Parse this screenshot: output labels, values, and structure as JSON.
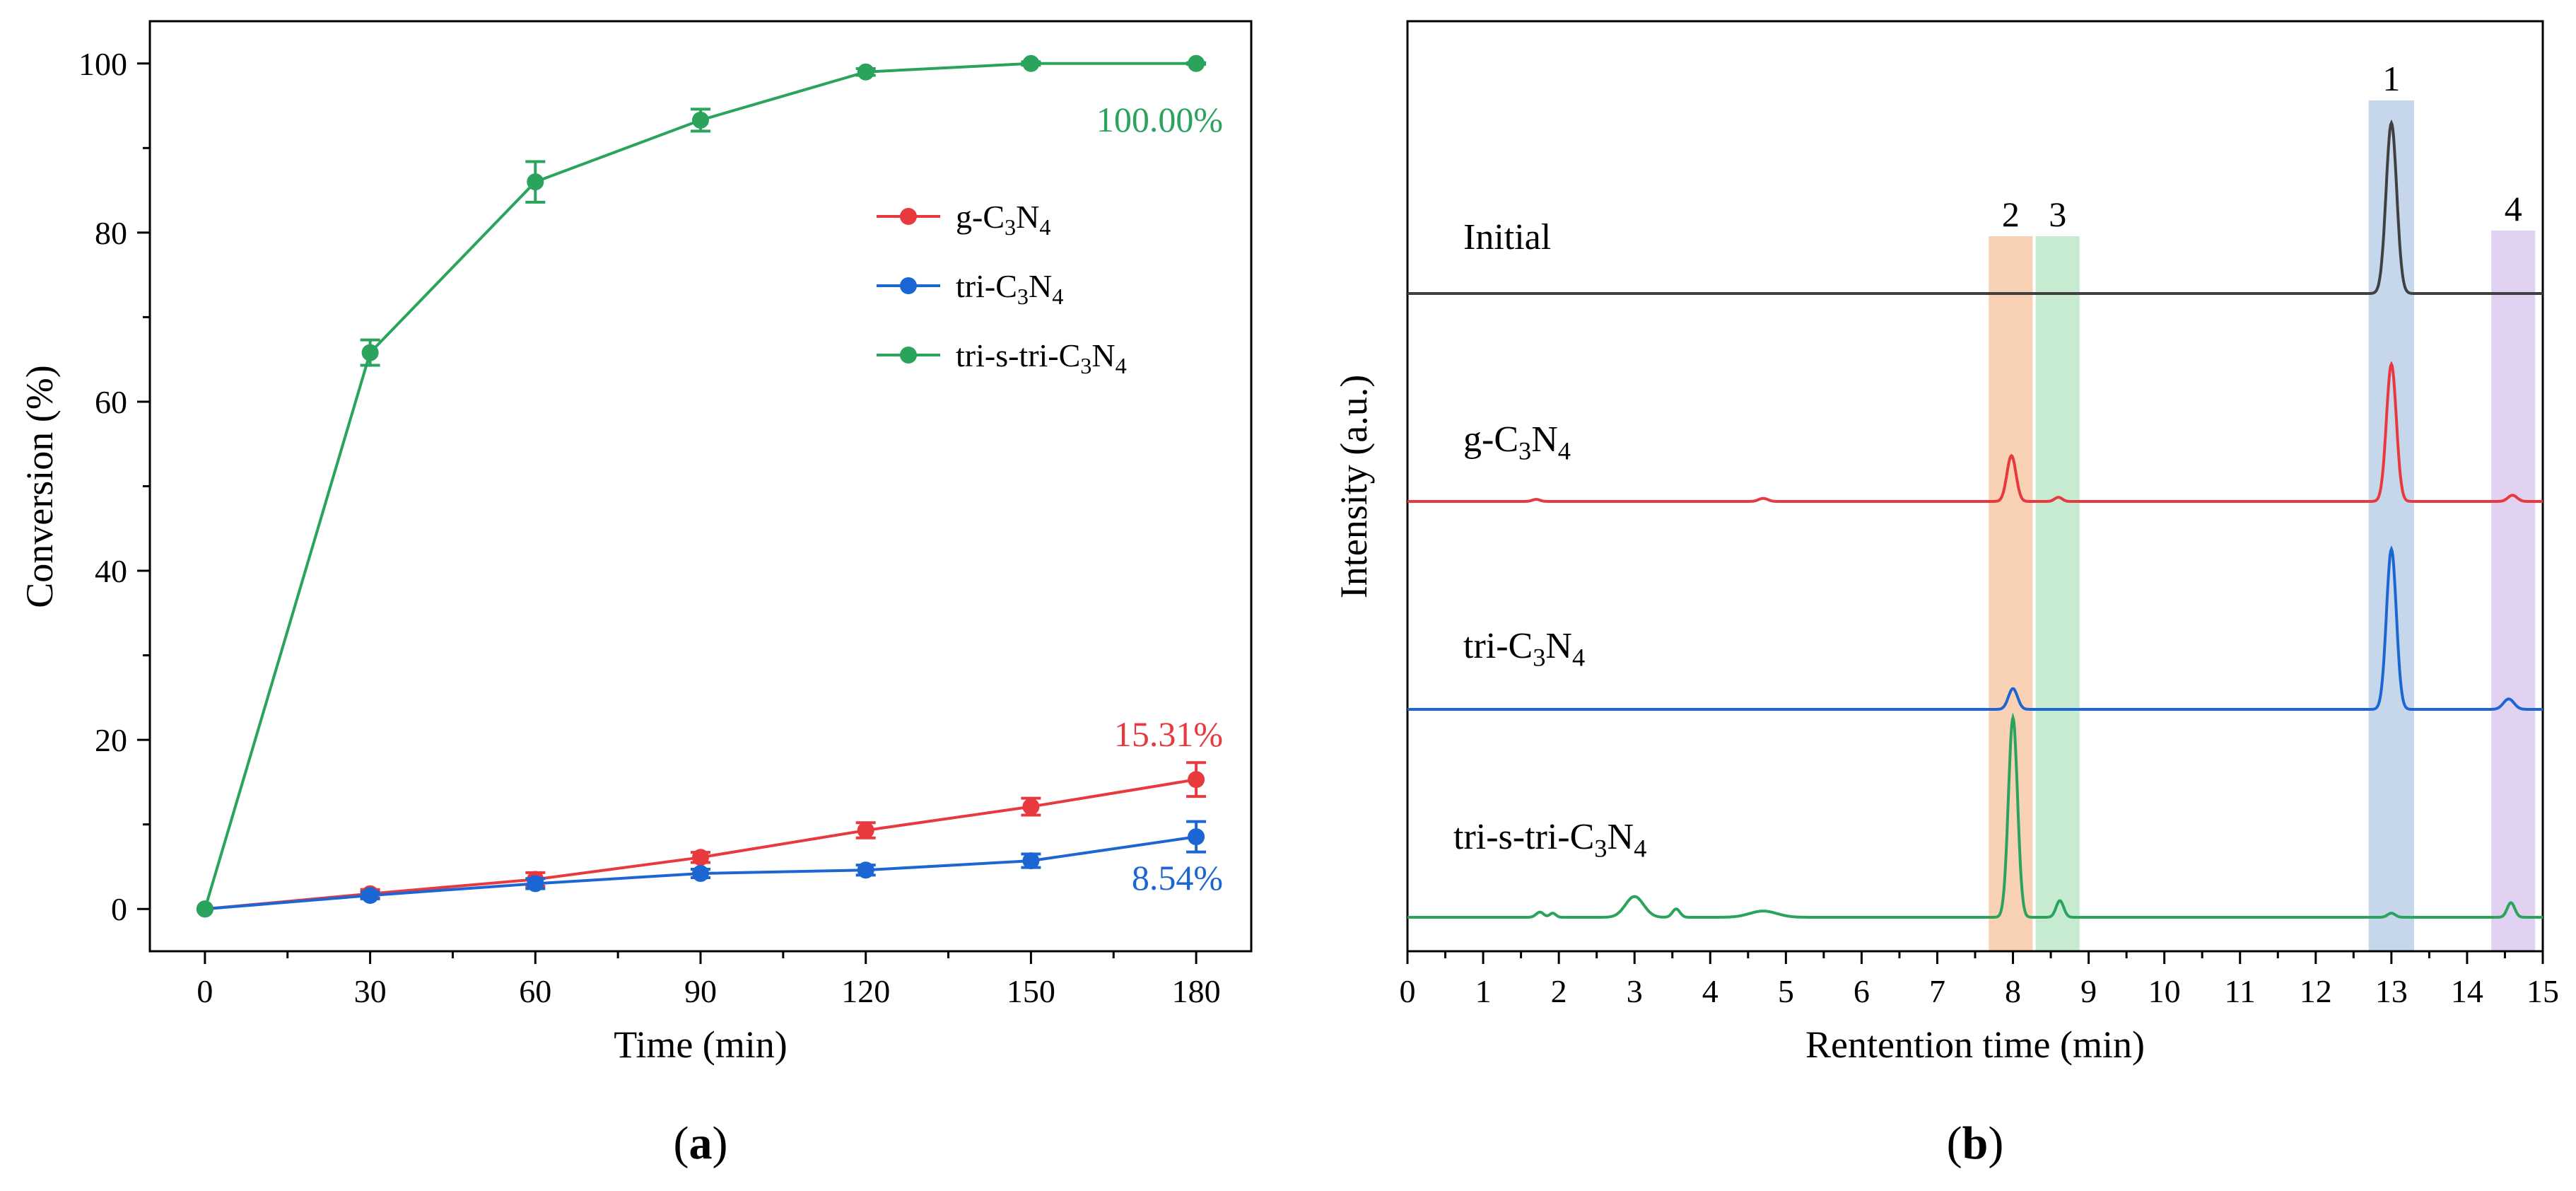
{
  "chart_data": [
    {
      "type": "line",
      "panel_label": "a",
      "xlabel": "Time (min)",
      "ylabel": "Conversion (%)",
      "xlim": [
        -10,
        190
      ],
      "ylim": [
        -5,
        105
      ],
      "xticks": [
        0,
        30,
        60,
        90,
        120,
        150,
        180
      ],
      "yticks": [
        0,
        20,
        40,
        60,
        80,
        100
      ],
      "x": [
        0,
        30,
        60,
        90,
        120,
        150,
        180
      ],
      "legend_position": "center-right",
      "series": [
        {
          "name": "g-C3N4",
          "legend_base": "g-C",
          "color": "#e8393f",
          "values": [
            0,
            1.8,
            3.5,
            6.1,
            9.3,
            12.1,
            15.31
          ],
          "errors": [
            0,
            0.5,
            0.8,
            0.6,
            0.9,
            1.0,
            2.0
          ],
          "end_label": "15.31%"
        },
        {
          "name": "tri-C3N4",
          "legend_base": "tri-C",
          "color": "#1c66d4",
          "values": [
            0,
            1.6,
            3.0,
            4.2,
            4.6,
            5.7,
            8.54
          ],
          "errors": [
            0,
            0.4,
            0.6,
            0.5,
            0.6,
            0.8,
            1.8
          ],
          "end_label": "8.54%"
        },
        {
          "name": "tri-s-tri-C3N4",
          "legend_base": "tri-s-tri-C",
          "color": "#2aa35d",
          "values": [
            0,
            65.8,
            86.0,
            93.3,
            99.0,
            100.0,
            100.0
          ],
          "errors": [
            0,
            1.5,
            2.4,
            1.3,
            0.4,
            0.2,
            0.1
          ],
          "end_label": "100.00%"
        }
      ]
    },
    {
      "type": "line",
      "panel_label": "b",
      "xlabel": "Rentention time (min)",
      "ylabel": "Intensity (a.u.)",
      "xlim": [
        0,
        15
      ],
      "xticks": [
        0,
        1,
        2,
        3,
        4,
        5,
        6,
        7,
        8,
        9,
        10,
        11,
        12,
        13,
        14,
        15
      ],
      "yticks": [],
      "series": [
        {
          "name": "Initial",
          "color": "#404040",
          "baseline": 3.0,
          "peaks": [
            [
              13.0,
              0.82,
              0.07
            ]
          ]
        },
        {
          "name": "g-C3N4",
          "label_base": "g-C",
          "color": "#e8393f",
          "baseline": 2.0,
          "peaks": [
            [
              7.98,
              0.22,
              0.06
            ],
            [
              8.6,
              0.02,
              0.05
            ],
            [
              13.0,
              0.66,
              0.065
            ],
            [
              14.6,
              0.03,
              0.06
            ],
            [
              1.7,
              0.01,
              0.05
            ],
            [
              4.7,
              0.015,
              0.06
            ]
          ]
        },
        {
          "name": "tri-C3N4",
          "label_base": "tri-C",
          "color": "#1c66d4",
          "baseline": 1.0,
          "peaks": [
            [
              8.0,
              0.1,
              0.06
            ],
            [
              13.0,
              0.77,
              0.065
            ],
            [
              14.55,
              0.05,
              0.07
            ]
          ]
        },
        {
          "name": "tri-s-tri-C3N4",
          "label_base": "tri-s-tri-C",
          "color": "#2aa35d",
          "baseline": 0.0,
          "peaks": [
            [
              8.0,
              0.96,
              0.06
            ],
            [
              8.62,
              0.08,
              0.05
            ],
            [
              3.0,
              0.1,
              0.12
            ],
            [
              14.58,
              0.07,
              0.05
            ],
            [
              1.75,
              0.025,
              0.05
            ],
            [
              1.92,
              0.02,
              0.04
            ],
            [
              3.55,
              0.04,
              0.05
            ],
            [
              4.7,
              0.03,
              0.18
            ],
            [
              13.0,
              0.02,
              0.05
            ]
          ]
        }
      ],
      "highlight_bands": [
        {
          "label": "2",
          "x_range": [
            7.68,
            8.26
          ],
          "color": "#f8c9a8"
        },
        {
          "label": "3",
          "x_range": [
            8.3,
            8.88
          ],
          "color": "#bce8c8"
        },
        {
          "label": "1",
          "x_range": [
            12.7,
            13.3
          ],
          "color": "#bcd0e8"
        },
        {
          "label": "4",
          "x_range": [
            14.32,
            14.9
          ],
          "color": "#dccaf0"
        }
      ]
    }
  ]
}
